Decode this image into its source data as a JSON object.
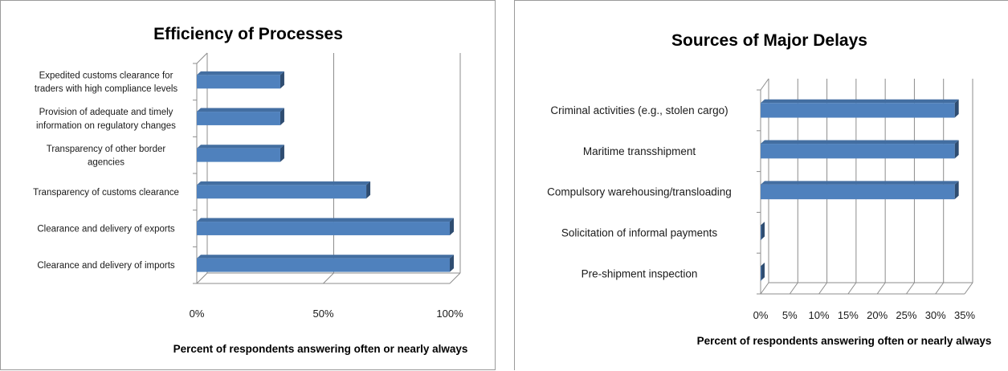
{
  "chart_data": [
    {
      "type": "bar",
      "orientation": "horizontal",
      "title": "Efficiency of Processes",
      "xlabel": "Percent of respondents answering often or nearly always",
      "ylabel": "",
      "xlim": [
        0,
        100
      ],
      "ticks": [
        "0%",
        "50%",
        "100%"
      ],
      "grid": true,
      "categories": [
        "Clearance and delivery of imports",
        "Clearance and delivery of exports",
        "Transparency of customs clearance",
        "Transparency of other border agencies",
        "Provision of adequate and timely information on regulatory changes",
        "Expedited customs clearance for traders with high compliance levels"
      ],
      "category_lines": [
        [
          "Clearance and delivery of imports"
        ],
        [
          "Clearance and delivery of exports"
        ],
        [
          "Transparency of customs clearance"
        ],
        [
          "Transparency of other border",
          "agencies"
        ],
        [
          "Provision of adequate and timely",
          "information on regulatory changes"
        ],
        [
          "Expedited customs clearance for",
          "traders with high compliance levels"
        ]
      ],
      "values": [
        100,
        100,
        67,
        33,
        33,
        33
      ],
      "bar_color": "#4f81bd"
    },
    {
      "type": "bar",
      "orientation": "horizontal",
      "title": "Sources of Major Delays",
      "xlabel": "Percent of respondents answering often or nearly always",
      "ylabel": "",
      "xlim": [
        0,
        35
      ],
      "ticks": [
        "0%",
        "5%",
        "10%",
        "15%",
        "20%",
        "25%",
        "30%",
        "35%"
      ],
      "grid": true,
      "categories": [
        "Pre-shipment inspection",
        "Solicitation of informal payments",
        "Compulsory warehousing/transloading",
        "Maritime transshipment",
        "Criminal activities (e.g., stolen cargo)"
      ],
      "category_lines": [
        [
          "Pre-shipment inspection"
        ],
        [
          "Solicitation of informal payments"
        ],
        [
          "Compulsory warehousing/transloading"
        ],
        [
          "Maritime transshipment"
        ],
        [
          "Criminal activities (e.g., stolen cargo)"
        ]
      ],
      "values": [
        0,
        0,
        33.3,
        33.3,
        33.3
      ],
      "bar_color": "#4f81bd"
    }
  ]
}
